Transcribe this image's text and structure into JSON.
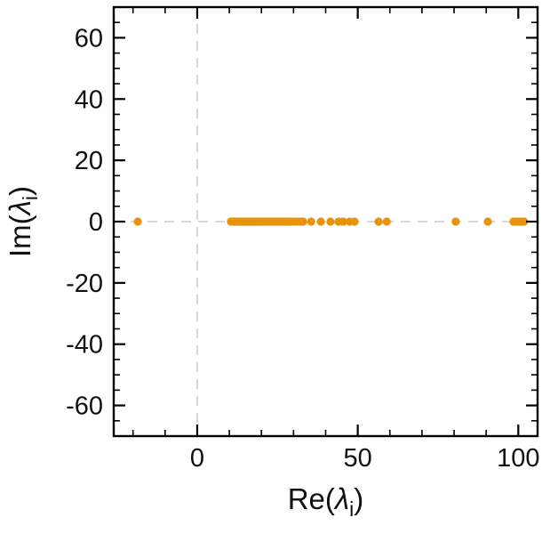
{
  "chart_data": {
    "type": "scatter",
    "title": "",
    "xlabel": {
      "prefix": "Re(",
      "symbol": "λ",
      "sub": "i",
      "suffix": ")"
    },
    "ylabel": {
      "prefix": "Im(",
      "symbol": "λ",
      "sub": "i",
      "suffix": ")"
    },
    "xlim": [
      -26,
      106
    ],
    "ylim": [
      -70,
      70
    ],
    "x_major_ticks": [
      0,
      50,
      100
    ],
    "x_minor_step": 10,
    "y_major_ticks": [
      -60,
      -40,
      -20,
      0,
      20,
      40,
      60
    ],
    "y_minor_step": 5,
    "grid": "dashed zero lines only",
    "legend": "none",
    "marker_color": "#e8930c",
    "dashed_line_color": "#cccccc",
    "frame_color": "#000000",
    "points": [
      [
        -18.5,
        0
      ],
      [
        10.5,
        0
      ],
      [
        11.0,
        0
      ],
      [
        11.3,
        0
      ],
      [
        11.6,
        0
      ],
      [
        12.0,
        0
      ],
      [
        12.3,
        0
      ],
      [
        12.6,
        0
      ],
      [
        13.0,
        0
      ],
      [
        13.3,
        0
      ],
      [
        13.6,
        0
      ],
      [
        14.0,
        0
      ],
      [
        14.3,
        0
      ],
      [
        14.6,
        0
      ],
      [
        15.0,
        0
      ],
      [
        15.3,
        0
      ],
      [
        15.6,
        0
      ],
      [
        16.0,
        0
      ],
      [
        16.3,
        0
      ],
      [
        16.6,
        0
      ],
      [
        17.0,
        0
      ],
      [
        17.3,
        0
      ],
      [
        17.7,
        0
      ],
      [
        18.0,
        0
      ],
      [
        18.4,
        0
      ],
      [
        18.8,
        0
      ],
      [
        19.2,
        0
      ],
      [
        19.6,
        0
      ],
      [
        20.0,
        0
      ],
      [
        20.5,
        0
      ],
      [
        21.0,
        0
      ],
      [
        21.5,
        0
      ],
      [
        22.0,
        0
      ],
      [
        22.5,
        0
      ],
      [
        23.0,
        0
      ],
      [
        23.5,
        0
      ],
      [
        24.0,
        0
      ],
      [
        24.5,
        0
      ],
      [
        25.0,
        0
      ],
      [
        25.5,
        0
      ],
      [
        26.0,
        0
      ],
      [
        26.5,
        0
      ],
      [
        27.0,
        0
      ],
      [
        27.5,
        0
      ],
      [
        28.0,
        0
      ],
      [
        28.5,
        0
      ],
      [
        29.0,
        0
      ],
      [
        30.0,
        0
      ],
      [
        31.0,
        0
      ],
      [
        32.0,
        0
      ],
      [
        33.0,
        0
      ],
      [
        35.5,
        0
      ],
      [
        38.5,
        0
      ],
      [
        41.5,
        0
      ],
      [
        44.0,
        0
      ],
      [
        45.5,
        0
      ],
      [
        47.5,
        0
      ],
      [
        49.0,
        0
      ],
      [
        56.5,
        0
      ],
      [
        59.0,
        0
      ],
      [
        80.5,
        0
      ],
      [
        90.5,
        0
      ],
      [
        98.5,
        0
      ],
      [
        99.3,
        0
      ],
      [
        100.0,
        0
      ],
      [
        100.6,
        0
      ],
      [
        101.2,
        0
      ],
      [
        101.8,
        0
      ]
    ]
  }
}
